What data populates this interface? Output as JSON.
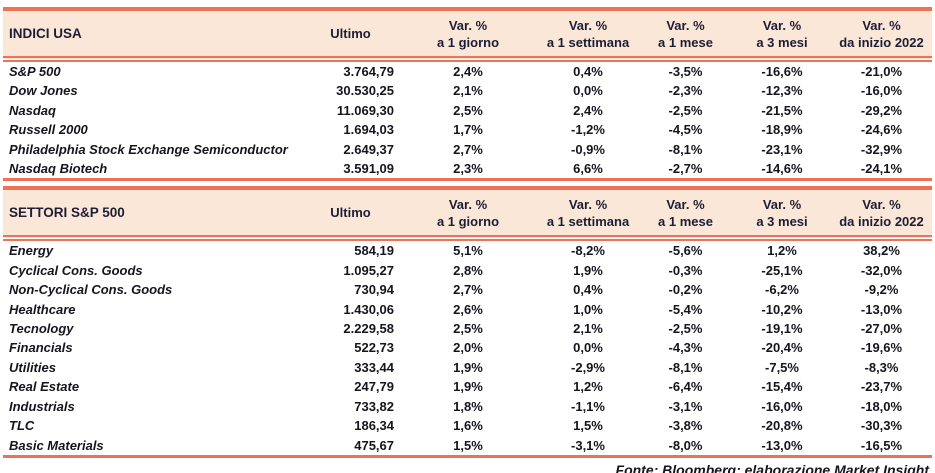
{
  "colors": {
    "accent": "#ed7258",
    "header_bg": "#fbe7d7",
    "text": "#15151f"
  },
  "columns": {
    "ultimo": "Ultimo",
    "vars": [
      {
        "l1": "Var. %",
        "l2": "a 1 giorno"
      },
      {
        "l1": "Var. %",
        "l2": "a 1 settimana"
      },
      {
        "l1": "Var. %",
        "l2": "a 1 mese"
      },
      {
        "l1": "Var. %",
        "l2": "a 3 mesi"
      },
      {
        "l1": "Var. %",
        "l2": "da inizio 2022"
      }
    ]
  },
  "indici_usa": {
    "title": "INDICI USA",
    "rows": [
      {
        "name": "S&P 500",
        "ultimo": "3.764,79",
        "v": [
          "2,4%",
          "0,4%",
          "-3,5%",
          "-16,6%",
          "-21,0%"
        ]
      },
      {
        "name": "Dow Jones",
        "ultimo": "30.530,25",
        "v": [
          "2,1%",
          "0,0%",
          "-2,3%",
          "-12,3%",
          "-16,0%"
        ]
      },
      {
        "name": "Nasdaq",
        "ultimo": "11.069,30",
        "v": [
          "2,5%",
          "2,4%",
          "-2,5%",
          "-21,5%",
          "-29,2%"
        ]
      },
      {
        "name": "Russell 2000",
        "ultimo": "1.694,03",
        "v": [
          "1,7%",
          "-1,2%",
          "-4,5%",
          "-18,9%",
          "-24,6%"
        ]
      },
      {
        "name": "Philadelphia Stock Exchange Semiconductor",
        "ultimo": "2.649,37",
        "v": [
          "2,7%",
          "-0,9%",
          "-8,1%",
          "-23,1%",
          "-32,9%"
        ]
      },
      {
        "name": "Nasdaq Biotech",
        "ultimo": "3.591,09",
        "v": [
          "2,3%",
          "6,6%",
          "-2,7%",
          "-14,6%",
          "-24,1%"
        ]
      }
    ]
  },
  "settori": {
    "title": "SETTORI S&P 500",
    "rows": [
      {
        "name": "Energy",
        "ultimo": "584,19",
        "v": [
          "5,1%",
          "-8,2%",
          "-5,6%",
          "1,2%",
          "38,2%"
        ]
      },
      {
        "name": "Cyclical Cons. Goods",
        "ultimo": "1.095,27",
        "v": [
          "2,8%",
          "1,9%",
          "-0,3%",
          "-25,1%",
          "-32,0%"
        ]
      },
      {
        "name": "Non-Cyclical Cons. Goods",
        "ultimo": "730,94",
        "v": [
          "2,7%",
          "0,4%",
          "-0,2%",
          "-6,2%",
          "-9,2%"
        ]
      },
      {
        "name": "Healthcare",
        "ultimo": "1.430,06",
        "v": [
          "2,6%",
          "1,0%",
          "-5,4%",
          "-10,2%",
          "-13,0%"
        ]
      },
      {
        "name": "Tecnology",
        "ultimo": "2.229,58",
        "v": [
          "2,5%",
          "2,1%",
          "-2,5%",
          "-19,1%",
          "-27,0%"
        ]
      },
      {
        "name": "Financials",
        "ultimo": "522,73",
        "v": [
          "2,0%",
          "0,0%",
          "-4,3%",
          "-20,4%",
          "-19,6%"
        ]
      },
      {
        "name": "Utilities",
        "ultimo": "333,44",
        "v": [
          "1,9%",
          "-2,9%",
          "-8,1%",
          "-7,5%",
          "-8,3%"
        ]
      },
      {
        "name": "Real Estate",
        "ultimo": "247,79",
        "v": [
          "1,9%",
          "1,2%",
          "-6,4%",
          "-15,4%",
          "-23,7%"
        ]
      },
      {
        "name": "Industrials",
        "ultimo": "733,82",
        "v": [
          "1,8%",
          "-1,1%",
          "-3,1%",
          "-16,0%",
          "-18,0%"
        ]
      },
      {
        "name": "TLC",
        "ultimo": "186,34",
        "v": [
          "1,6%",
          "1,5%",
          "-3,8%",
          "-20,8%",
          "-30,3%"
        ]
      },
      {
        "name": "Basic Materials",
        "ultimo": "475,67",
        "v": [
          "1,5%",
          "-3,1%",
          "-8,0%",
          "-13,0%",
          "-16,5%"
        ]
      }
    ]
  },
  "footer": "Fonte: Bloomberg; elaborazione Market Insight"
}
